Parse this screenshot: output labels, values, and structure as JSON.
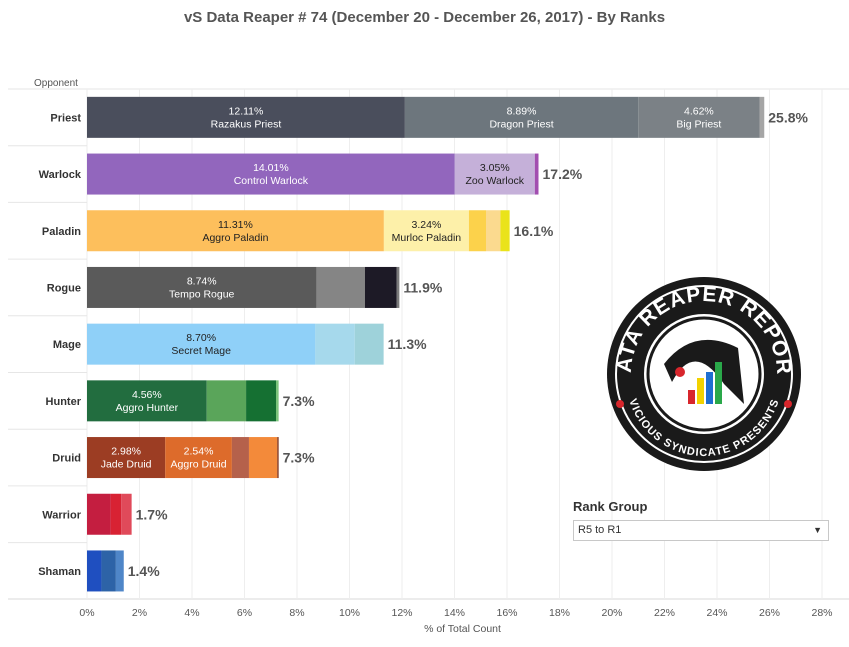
{
  "chart_data": {
    "type": "bar",
    "orientation": "horizontal",
    "stacked": true,
    "title": "vS Data Reaper #  74 (December 20 - December 26, 2017) - By Ranks",
    "ylabel": "Opponent",
    "xlabel": "% of Total Count",
    "xlim": [
      0,
      28
    ],
    "xticks": [
      "0%",
      "2%",
      "4%",
      "6%",
      "8%",
      "10%",
      "12%",
      "14%",
      "16%",
      "18%",
      "20%",
      "22%",
      "24%",
      "26%",
      "28%"
    ],
    "grid": "vertical",
    "categories": [
      "Priest",
      "Warlock",
      "Paladin",
      "Rogue",
      "Mage",
      "Hunter",
      "Druid",
      "Warrior",
      "Shaman"
    ],
    "bars": [
      {
        "category": "Priest",
        "total_label": "25.8%",
        "segments": [
          {
            "value": 12.11,
            "pct_label": "12.11%",
            "name": "Razakus Priest",
            "color": "#4a4e5c"
          },
          {
            "value": 8.89,
            "pct_label": "8.89%",
            "name": "Dragon Priest",
            "color": "#6d767d"
          },
          {
            "value": 4.62,
            "pct_label": "4.62%",
            "name": "Big Priest",
            "color": "#7b8186"
          },
          {
            "value": 0.18,
            "color": "#a5a5a5"
          }
        ]
      },
      {
        "category": "Warlock",
        "total_label": "17.2%",
        "segments": [
          {
            "value": 14.01,
            "pct_label": "14.01%",
            "name": "Control Warlock",
            "color": "#9266bd"
          },
          {
            "value": 3.05,
            "pct_label": "3.05%",
            "name": "Zoo Warlock",
            "color": "#c5b0d9"
          },
          {
            "value": 0.14,
            "color": "#a24eb0"
          }
        ]
      },
      {
        "category": "Paladin",
        "total_label": "16.1%",
        "segments": [
          {
            "value": 11.31,
            "pct_label": "11.31%",
            "name": "Aggro Paladin",
            "color": "#fdbf5c"
          },
          {
            "value": 3.24,
            "pct_label": "3.24%",
            "name": "Murloc Paladin",
            "color": "#fdf0a9"
          },
          {
            "value": 0.65,
            "color": "#fcd24b"
          },
          {
            "value": 0.55,
            "color": "#fbda8f"
          },
          {
            "value": 0.35,
            "color": "#eae31a"
          }
        ]
      },
      {
        "category": "Rogue",
        "total_label": "11.9%",
        "segments": [
          {
            "value": 8.74,
            "pct_label": "8.74%",
            "name": "Tempo Rogue",
            "color": "#5a5a5a"
          },
          {
            "value": 1.85,
            "color": "#858585"
          },
          {
            "value": 1.21,
            "color": "#1d1a26"
          },
          {
            "value": 0.1,
            "color": "#7b7b7b"
          }
        ]
      },
      {
        "category": "Mage",
        "total_label": "11.3%",
        "segments": [
          {
            "value": 8.7,
            "pct_label": "8.70%",
            "name": "Secret Mage",
            "color": "#8fd0f8"
          },
          {
            "value": 1.5,
            "color": "#a6d9ec"
          },
          {
            "value": 1.1,
            "color": "#9ed2da"
          }
        ]
      },
      {
        "category": "Hunter",
        "total_label": "7.3%",
        "segments": [
          {
            "value": 4.56,
            "pct_label": "4.56%",
            "name": "Aggro Hunter",
            "color": "#226d3f"
          },
          {
            "value": 1.5,
            "color": "#5aa55a"
          },
          {
            "value": 1.14,
            "color": "#157032"
          },
          {
            "value": 0.1,
            "color": "#7cc47c"
          }
        ]
      },
      {
        "category": "Druid",
        "total_label": "7.3%",
        "segments": [
          {
            "value": 2.98,
            "pct_label": "2.98%",
            "name": "Jade Druid",
            "color": "#9c3d23"
          },
          {
            "value": 2.54,
            "pct_label": "2.54%",
            "name": "Aggro Druid",
            "color": "#dd6b2b"
          },
          {
            "value": 0.65,
            "color": "#b5614b"
          },
          {
            "value": 1.08,
            "color": "#f38a3a"
          },
          {
            "value": 0.05,
            "color": "#7a2d16"
          }
        ]
      },
      {
        "category": "Warrior",
        "total_label": "1.7%",
        "segments": [
          {
            "value": 0.9,
            "color": "#c41e40"
          },
          {
            "value": 0.4,
            "color": "#d82233"
          },
          {
            "value": 0.4,
            "color": "#e04a5a"
          }
        ]
      },
      {
        "category": "Shaman",
        "total_label": "1.4%",
        "segments": [
          {
            "value": 0.55,
            "color": "#1f4fc0"
          },
          {
            "value": 0.55,
            "color": "#2d63a7"
          },
          {
            "value": 0.3,
            "color": "#4f86c8"
          }
        ]
      }
    ]
  },
  "logo": {
    "text_top": "DATA REAPER REPORT",
    "text_bottom": "VICIOUS SYNDICATE PRESENTS",
    "colors": [
      "#1a1a1a",
      "#ffffff",
      "#d8262c",
      "#f2d200",
      "#1f6fd0",
      "#2aa84a"
    ]
  },
  "rank_group": {
    "title": "Rank Group",
    "selected": "R5 to R1",
    "arrow": "▼"
  }
}
